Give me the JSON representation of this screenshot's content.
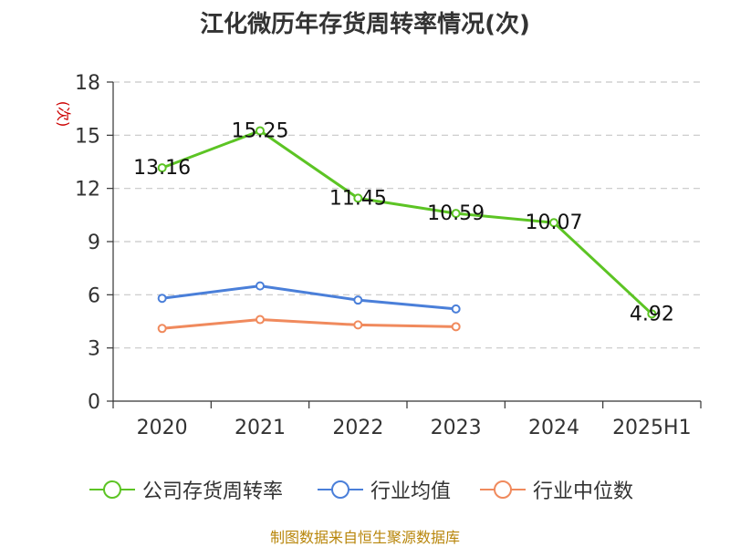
{
  "title": "江化微历年存货周转率情况(次)",
  "source": "制图数据来自恒生聚源数据库",
  "colors": {
    "company": "#5cc424",
    "industry_avg": "#4a7fd9",
    "industry_median": "#f08a5d",
    "grid": "#c8c8c8",
    "axis": "#333333",
    "ylabel": "#cc0000"
  },
  "chart_data": {
    "type": "line",
    "categories": [
      "2020",
      "2021",
      "2022",
      "2023",
      "2024",
      "2025H1"
    ],
    "ylabel": "(次)",
    "ylim": [
      0,
      18
    ],
    "yticks": [
      0,
      3,
      6,
      9,
      12,
      15,
      18
    ],
    "grid": true,
    "legend_position": "bottom",
    "series": [
      {
        "name": "公司存货周转率",
        "color": "#5cc424",
        "values": [
          13.16,
          15.25,
          11.45,
          10.59,
          10.07,
          4.92
        ],
        "labels": [
          "13.16",
          "15.25",
          "11.45",
          "10.59",
          "10.07",
          "4.92"
        ]
      },
      {
        "name": "行业均值",
        "color": "#4a7fd9",
        "values": [
          5.8,
          6.5,
          5.7,
          5.2,
          null,
          null
        ]
      },
      {
        "name": "行业中位数",
        "color": "#f08a5d",
        "values": [
          4.1,
          4.6,
          4.3,
          4.2,
          null,
          null
        ]
      }
    ]
  }
}
